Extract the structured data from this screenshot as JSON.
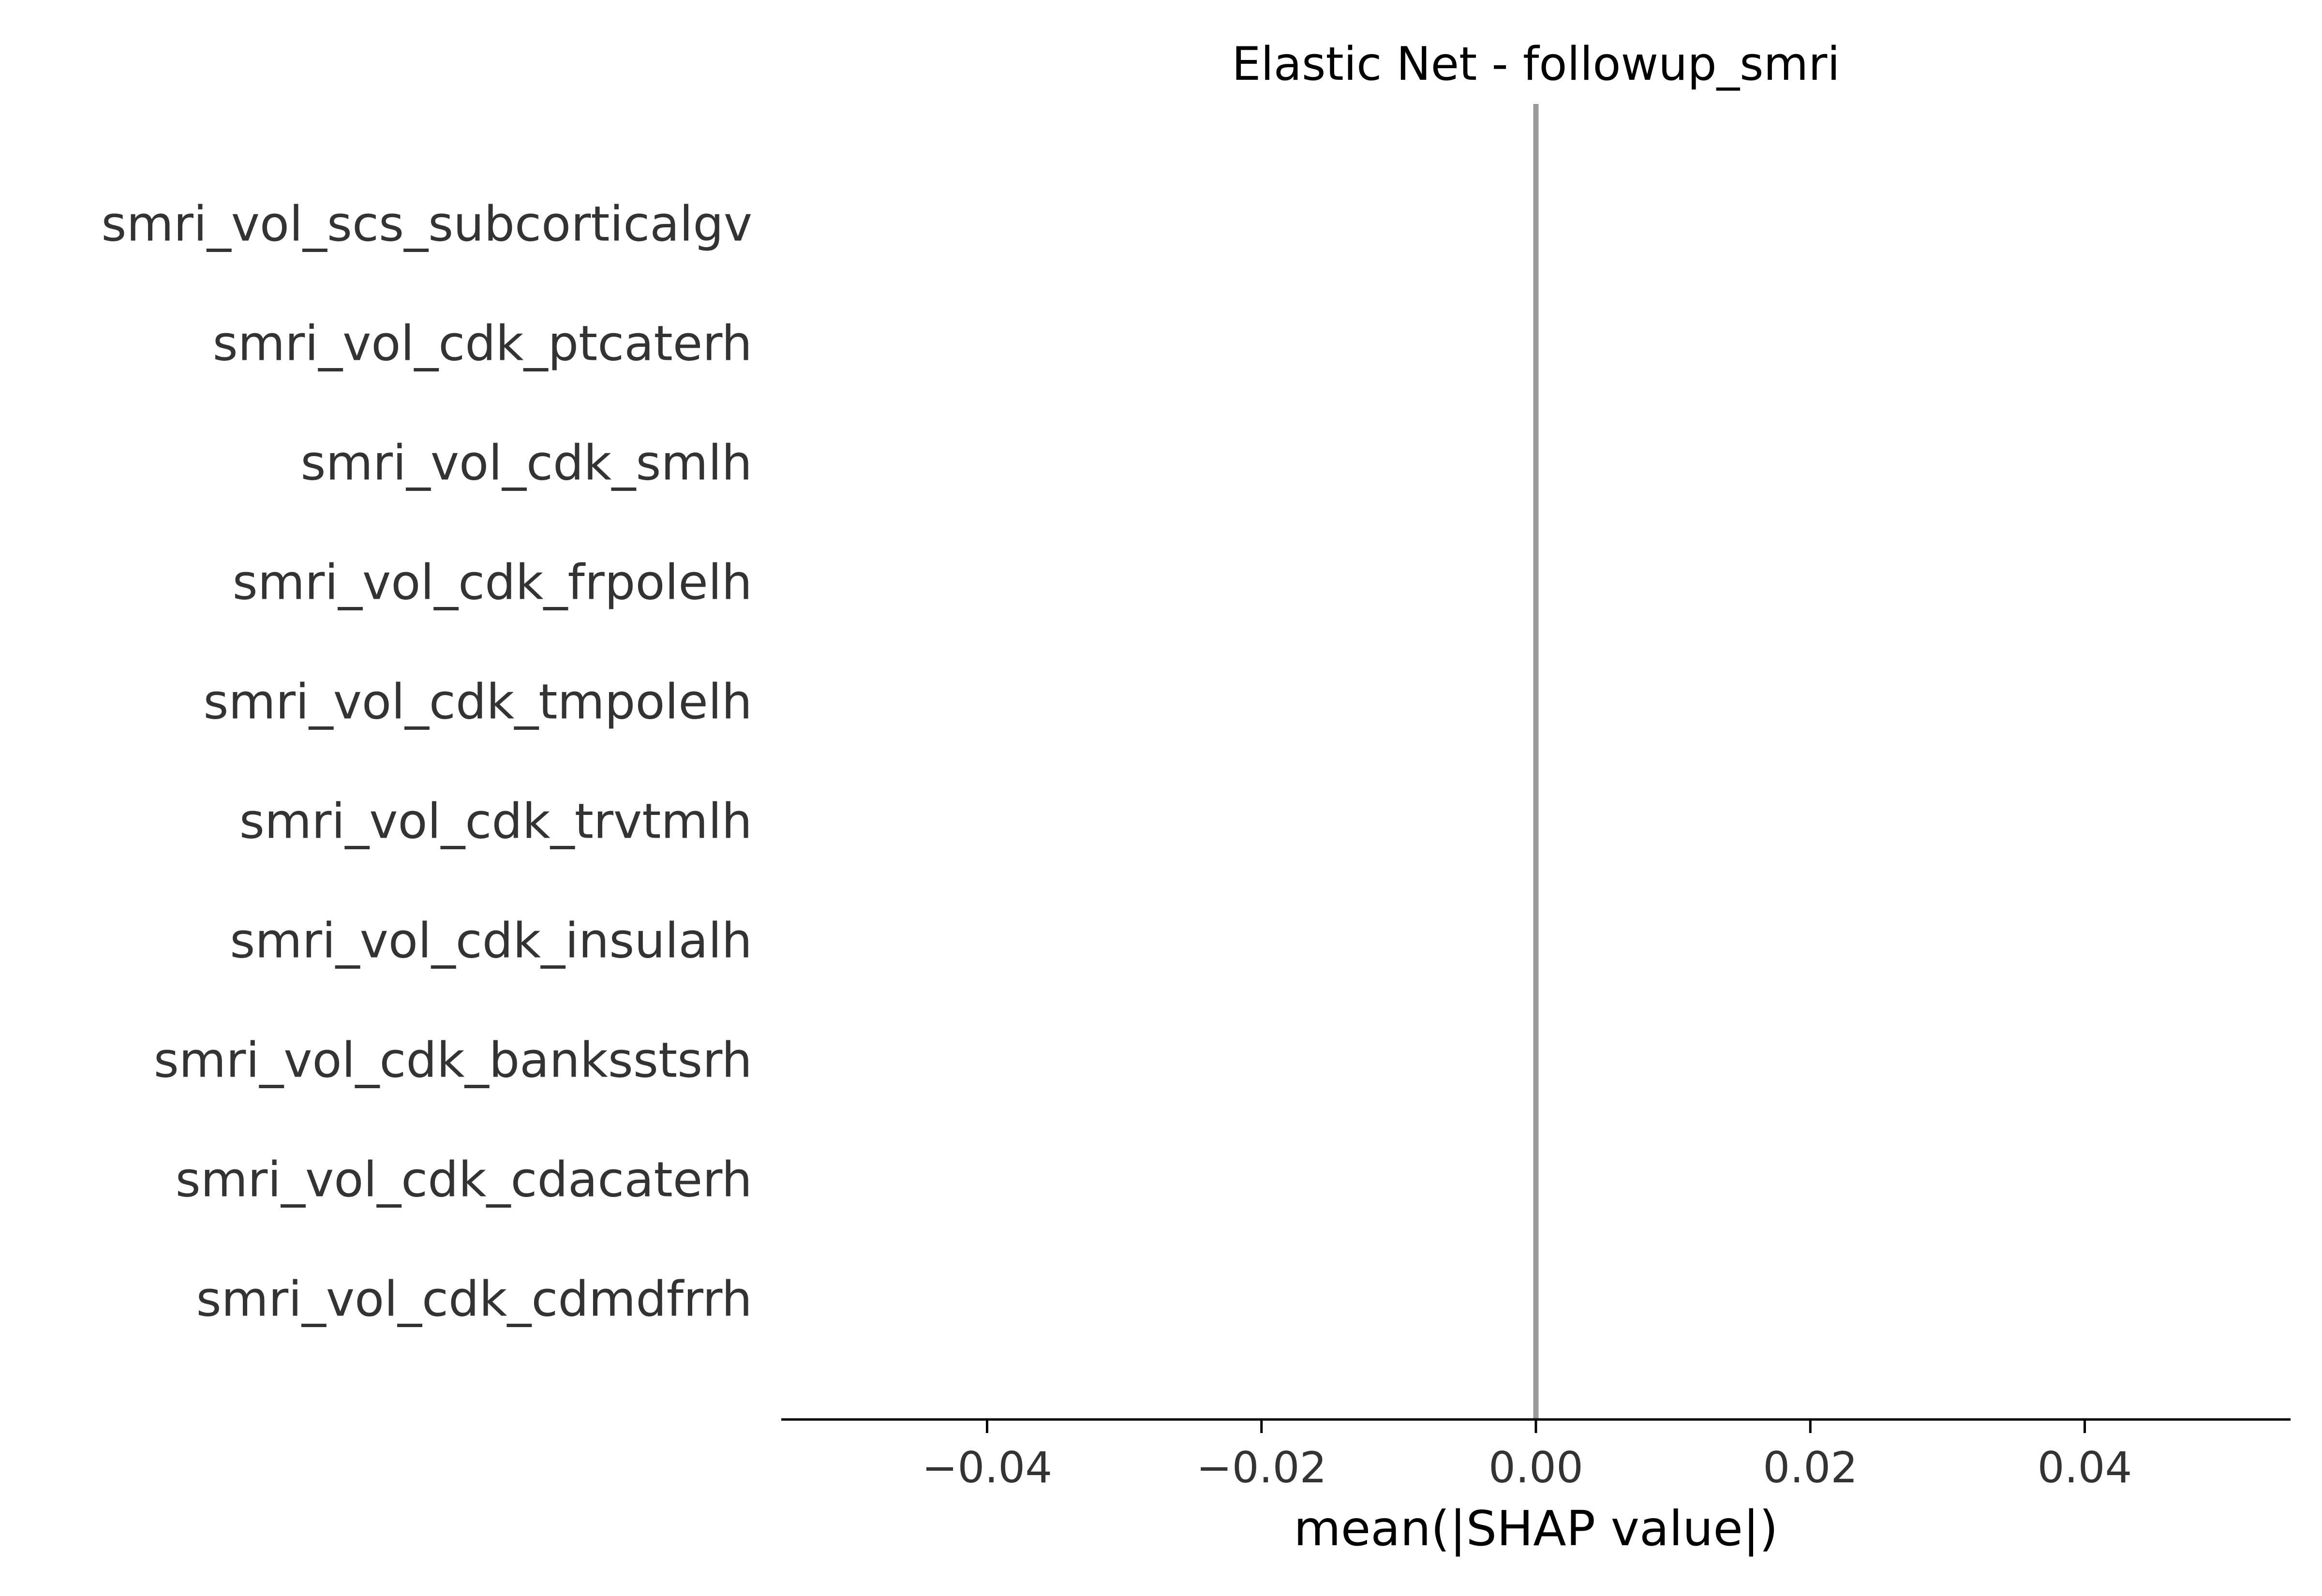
{
  "chart_data": {
    "type": "bar",
    "title": "Elastic Net - followup_smri",
    "xlabel": "mean(|SHAP value|)",
    "ylabel": "",
    "categories": [
      "smri_vol_scs_subcorticalgv",
      "smri_vol_cdk_ptcaterh",
      "smri_vol_cdk_smlh",
      "smri_vol_cdk_frpolelh",
      "smri_vol_cdk_tmpolelh",
      "smri_vol_cdk_trvtmlh",
      "smri_vol_cdk_insulalh",
      "smri_vol_cdk_banksstsrh",
      "smri_vol_cdk_cdacaterh",
      "smri_vol_cdk_cdmdfrrh"
    ],
    "values": [
      0,
      0,
      0,
      0,
      0,
      0,
      0,
      0,
      0,
      0
    ],
    "orientation": "horizontal",
    "xlim": [
      -0.055,
      0.055
    ],
    "xticks": [
      -0.04,
      -0.02,
      0.0,
      0.02,
      0.04
    ],
    "xtick_labels": [
      "−0.04",
      "−0.02",
      "0.00",
      "0.02",
      "0.04"
    ],
    "grid": false,
    "colors": {
      "bar": "#1e88e5",
      "zero_line": "#999999",
      "axis": "#000000",
      "text": "#333333"
    }
  }
}
